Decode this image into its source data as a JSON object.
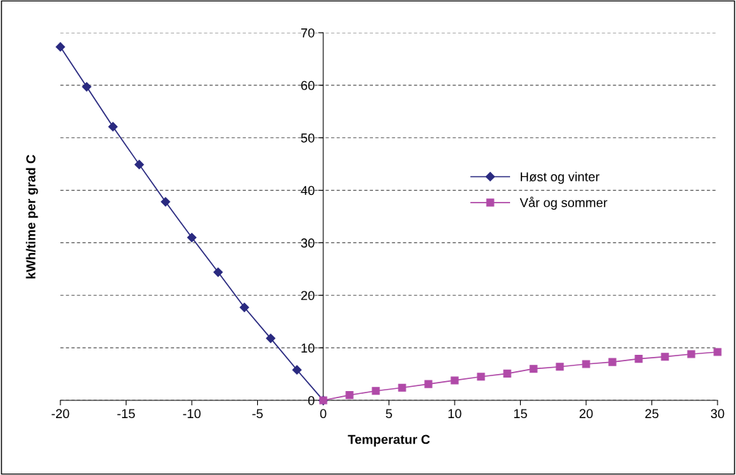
{
  "chart_data": {
    "type": "line",
    "xlabel": "Temperatur C",
    "ylabel": "kWh/time per grad C",
    "xlim": [
      -20,
      30
    ],
    "xticks": [
      -20,
      -15,
      -10,
      -5,
      0,
      5,
      10,
      15,
      20,
      25,
      30
    ],
    "ylim": [
      0,
      70
    ],
    "yticks": [
      0,
      10,
      20,
      30,
      40,
      50,
      60,
      70
    ],
    "grid": "y",
    "legend": "center right",
    "series": [
      {
        "name": "Høst og vinter",
        "color": "#2a2a80",
        "marker": "diamond",
        "x": [
          -20,
          -18,
          -16,
          -14,
          -12,
          -10,
          -8,
          -6,
          -4,
          -2,
          0
        ],
        "values": [
          67.3,
          59.7,
          52.1,
          44.9,
          37.8,
          31.0,
          24.4,
          17.7,
          11.8,
          5.8,
          0
        ]
      },
      {
        "name": "Vår og sommer",
        "color": "#b04aa8",
        "marker": "square",
        "x": [
          0,
          2,
          4,
          6,
          8,
          10,
          12,
          14,
          16,
          18,
          20,
          22,
          24,
          26,
          28,
          30
        ],
        "values": [
          0,
          1.0,
          1.8,
          2.4,
          3.1,
          3.8,
          4.5,
          5.1,
          6.0,
          6.4,
          6.9,
          7.3,
          7.9,
          8.3,
          8.8,
          9.2
        ]
      }
    ]
  }
}
